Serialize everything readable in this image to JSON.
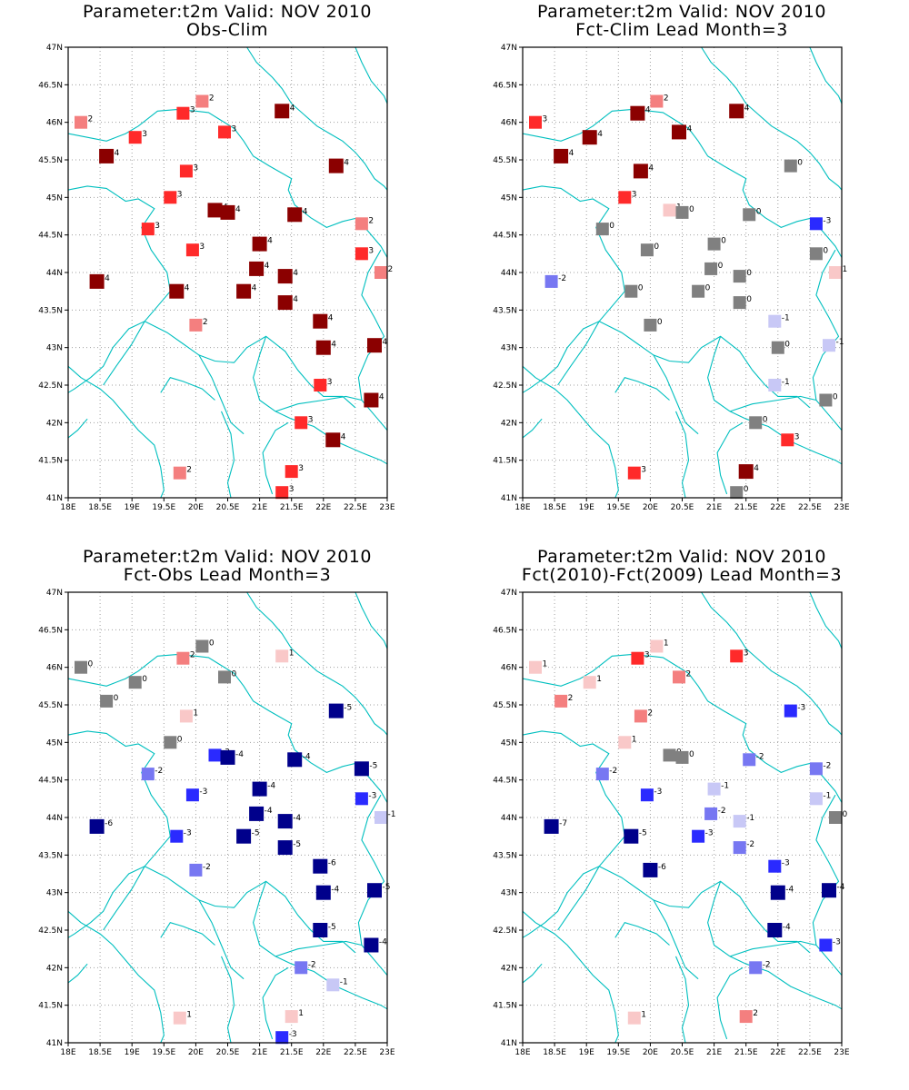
{
  "colors": {
    "red3": "#8b0000",
    "red2": "#ff2a2a",
    "red1": "#f47f7f",
    "red0": "#f9c8c8",
    "zero": "#808080",
    "blue1": "#c8c8f6",
    "blue2": "#7777f2",
    "blue3": "#2a2aff",
    "blue4": "#00008b",
    "coast": "#00bfbf",
    "grid": "#a0a0a0"
  },
  "axes": {
    "x_ticks": [
      "18E",
      "18.5E",
      "19E",
      "19.5E",
      "20E",
      "20.5E",
      "21E",
      "21.5E",
      "22E",
      "22.5E",
      "23E"
    ],
    "y_ticks": [
      "47N",
      "46.5N",
      "46N",
      "45.5N",
      "45N",
      "44.5N",
      "44N",
      "43.5N",
      "43N",
      "42.5N",
      "42N",
      "41.5N",
      "41N"
    ],
    "x_range": [
      18,
      23
    ],
    "y_range": [
      41,
      47
    ]
  },
  "panels": [
    {
      "title_line1": "Parameter:t2m Valid: NOV 2010",
      "title_line2": "Obs-Clim",
      "points": [
        {
          "lon": 18.2,
          "lat": 46.0,
          "v": 2
        },
        {
          "lon": 18.6,
          "lat": 45.55,
          "v": 4
        },
        {
          "lon": 19.05,
          "lat": 45.8,
          "v": 3
        },
        {
          "lon": 19.8,
          "lat": 46.12,
          "v": 3
        },
        {
          "lon": 20.1,
          "lat": 46.28,
          "v": 2
        },
        {
          "lon": 20.45,
          "lat": 45.87,
          "v": 3
        },
        {
          "lon": 21.35,
          "lat": 46.15,
          "v": 4
        },
        {
          "lon": 22.2,
          "lat": 45.42,
          "v": 4
        },
        {
          "lon": 19.85,
          "lat": 45.35,
          "v": 3
        },
        {
          "lon": 19.6,
          "lat": 45.0,
          "v": 3
        },
        {
          "lon": 20.3,
          "lat": 44.83,
          "v": 4
        },
        {
          "lon": 20.5,
          "lat": 44.8,
          "v": 4
        },
        {
          "lon": 21.55,
          "lat": 44.77,
          "v": 4
        },
        {
          "lon": 19.25,
          "lat": 44.58,
          "v": 3
        },
        {
          "lon": 19.95,
          "lat": 44.3,
          "v": 3
        },
        {
          "lon": 21.0,
          "lat": 44.38,
          "v": 4
        },
        {
          "lon": 22.6,
          "lat": 44.65,
          "v": 2
        },
        {
          "lon": 22.6,
          "lat": 44.25,
          "v": 3
        },
        {
          "lon": 22.9,
          "lat": 44.0,
          "v": 2
        },
        {
          "lon": 20.95,
          "lat": 44.05,
          "v": 4
        },
        {
          "lon": 21.4,
          "lat": 43.95,
          "v": 4
        },
        {
          "lon": 18.45,
          "lat": 43.88,
          "v": 4
        },
        {
          "lon": 19.7,
          "lat": 43.75,
          "v": 4
        },
        {
          "lon": 20.75,
          "lat": 43.75,
          "v": 4
        },
        {
          "lon": 21.4,
          "lat": 43.6,
          "v": 4
        },
        {
          "lon": 21.95,
          "lat": 43.35,
          "v": 4
        },
        {
          "lon": 20.0,
          "lat": 43.3,
          "v": 2
        },
        {
          "lon": 22.0,
          "lat": 43.0,
          "v": 4
        },
        {
          "lon": 22.8,
          "lat": 43.03,
          "v": 4
        },
        {
          "lon": 21.95,
          "lat": 42.5,
          "v": 3
        },
        {
          "lon": 22.75,
          "lat": 42.3,
          "v": 4
        },
        {
          "lon": 21.65,
          "lat": 42.0,
          "v": 3
        },
        {
          "lon": 22.15,
          "lat": 41.77,
          "v": 4
        },
        {
          "lon": 21.5,
          "lat": 41.35,
          "v": 3
        },
        {
          "lon": 19.75,
          "lat": 41.33,
          "v": 2
        },
        {
          "lon": 21.35,
          "lat": 41.07,
          "v": 3
        }
      ]
    },
    {
      "title_line1": "Parameter:t2m Valid: NOV 2010",
      "title_line2": "Fct-Clim Lead Month=3",
      "points": [
        {
          "lon": 18.2,
          "lat": 46.0,
          "v": 3
        },
        {
          "lon": 18.6,
          "lat": 45.55,
          "v": 4
        },
        {
          "lon": 19.05,
          "lat": 45.8,
          "v": 4
        },
        {
          "lon": 19.8,
          "lat": 46.12,
          "v": 4
        },
        {
          "lon": 20.1,
          "lat": 46.28,
          "v": 2
        },
        {
          "lon": 20.45,
          "lat": 45.87,
          "v": 4
        },
        {
          "lon": 21.35,
          "lat": 46.15,
          "v": 4
        },
        {
          "lon": 22.2,
          "lat": 45.42,
          "v": 0
        },
        {
          "lon": 19.85,
          "lat": 45.35,
          "v": 4
        },
        {
          "lon": 19.6,
          "lat": 45.0,
          "v": 3
        },
        {
          "lon": 20.3,
          "lat": 44.83,
          "v": 1
        },
        {
          "lon": 20.5,
          "lat": 44.8,
          "v": 0
        },
        {
          "lon": 21.55,
          "lat": 44.77,
          "v": 0
        },
        {
          "lon": 19.25,
          "lat": 44.58,
          "v": 0
        },
        {
          "lon": 19.95,
          "lat": 44.3,
          "v": 0
        },
        {
          "lon": 21.0,
          "lat": 44.38,
          "v": 0
        },
        {
          "lon": 22.6,
          "lat": 44.65,
          "v": -3
        },
        {
          "lon": 22.6,
          "lat": 44.25,
          "v": 0
        },
        {
          "lon": 22.9,
          "lat": 44.0,
          "v": 1
        },
        {
          "lon": 20.95,
          "lat": 44.05,
          "v": 0
        },
        {
          "lon": 21.4,
          "lat": 43.95,
          "v": 0
        },
        {
          "lon": 18.45,
          "lat": 43.88,
          "v": -2
        },
        {
          "lon": 19.7,
          "lat": 43.75,
          "v": 0
        },
        {
          "lon": 20.75,
          "lat": 43.75,
          "v": 0
        },
        {
          "lon": 21.4,
          "lat": 43.6,
          "v": 0
        },
        {
          "lon": 21.95,
          "lat": 43.35,
          "v": -1
        },
        {
          "lon": 20.0,
          "lat": 43.3,
          "v": 0
        },
        {
          "lon": 22.0,
          "lat": 43.0,
          "v": 0
        },
        {
          "lon": 22.8,
          "lat": 43.03,
          "v": -1
        },
        {
          "lon": 21.95,
          "lat": 42.5,
          "v": -1
        },
        {
          "lon": 22.75,
          "lat": 42.3,
          "v": 0
        },
        {
          "lon": 21.65,
          "lat": 42.0,
          "v": 0
        },
        {
          "lon": 22.15,
          "lat": 41.77,
          "v": 3
        },
        {
          "lon": 21.5,
          "lat": 41.35,
          "v": 4
        },
        {
          "lon": 19.75,
          "lat": 41.33,
          "v": 3
        },
        {
          "lon": 21.35,
          "lat": 41.07,
          "v": 0
        }
      ]
    },
    {
      "title_line1": "Parameter:t2m Valid: NOV 2010",
      "title_line2": "Fct-Obs Lead Month=3",
      "points": [
        {
          "lon": 18.2,
          "lat": 46.0,
          "v": 0
        },
        {
          "lon": 18.6,
          "lat": 45.55,
          "v": 0
        },
        {
          "lon": 19.05,
          "lat": 45.8,
          "v": 0
        },
        {
          "lon": 19.8,
          "lat": 46.12,
          "v": 2
        },
        {
          "lon": 20.1,
          "lat": 46.28,
          "v": 0
        },
        {
          "lon": 20.45,
          "lat": 45.87,
          "v": 0
        },
        {
          "lon": 21.35,
          "lat": 46.15,
          "v": 1
        },
        {
          "lon": 22.2,
          "lat": 45.42,
          "v": -5
        },
        {
          "lon": 19.85,
          "lat": 45.35,
          "v": 1
        },
        {
          "lon": 19.6,
          "lat": 45.0,
          "v": 0
        },
        {
          "lon": 20.3,
          "lat": 44.83,
          "v": -3
        },
        {
          "lon": 20.5,
          "lat": 44.8,
          "v": -4
        },
        {
          "lon": 21.55,
          "lat": 44.77,
          "v": -4
        },
        {
          "lon": 19.25,
          "lat": 44.58,
          "v": -2
        },
        {
          "lon": 19.95,
          "lat": 44.3,
          "v": -3
        },
        {
          "lon": 21.0,
          "lat": 44.38,
          "v": -4
        },
        {
          "lon": 22.6,
          "lat": 44.65,
          "v": -5
        },
        {
          "lon": 22.6,
          "lat": 44.25,
          "v": -3
        },
        {
          "lon": 22.9,
          "lat": 44.0,
          "v": -1
        },
        {
          "lon": 20.95,
          "lat": 44.05,
          "v": -4
        },
        {
          "lon": 21.4,
          "lat": 43.95,
          "v": -4
        },
        {
          "lon": 18.45,
          "lat": 43.88,
          "v": -6
        },
        {
          "lon": 19.7,
          "lat": 43.75,
          "v": -3
        },
        {
          "lon": 20.75,
          "lat": 43.75,
          "v": -5
        },
        {
          "lon": 21.4,
          "lat": 43.6,
          "v": -5
        },
        {
          "lon": 21.95,
          "lat": 43.35,
          "v": -6
        },
        {
          "lon": 20.0,
          "lat": 43.3,
          "v": -2
        },
        {
          "lon": 22.0,
          "lat": 43.0,
          "v": -4
        },
        {
          "lon": 22.8,
          "lat": 43.03,
          "v": -5
        },
        {
          "lon": 21.95,
          "lat": 42.5,
          "v": -5
        },
        {
          "lon": 22.75,
          "lat": 42.3,
          "v": -4
        },
        {
          "lon": 21.65,
          "lat": 42.0,
          "v": -2
        },
        {
          "lon": 22.15,
          "lat": 41.77,
          "v": -1
        },
        {
          "lon": 21.5,
          "lat": 41.35,
          "v": 1
        },
        {
          "lon": 19.75,
          "lat": 41.33,
          "v": 1
        },
        {
          "lon": 21.35,
          "lat": 41.07,
          "v": -3
        }
      ]
    },
    {
      "title_line1": "Parameter:t2m Valid: NOV 2010",
      "title_line2": "Fct(2010)-Fct(2009) Lead Month=3",
      "points": [
        {
          "lon": 18.2,
          "lat": 46.0,
          "v": 1
        },
        {
          "lon": 18.6,
          "lat": 45.55,
          "v": 2
        },
        {
          "lon": 19.05,
          "lat": 45.8,
          "v": 1
        },
        {
          "lon": 19.8,
          "lat": 46.12,
          "v": 3
        },
        {
          "lon": 20.1,
          "lat": 46.28,
          "v": 1
        },
        {
          "lon": 20.45,
          "lat": 45.87,
          "v": 2
        },
        {
          "lon": 21.35,
          "lat": 46.15,
          "v": 3
        },
        {
          "lon": 22.2,
          "lat": 45.42,
          "v": -3
        },
        {
          "lon": 19.85,
          "lat": 45.35,
          "v": 2
        },
        {
          "lon": 19.6,
          "lat": 45.0,
          "v": 1
        },
        {
          "lon": 20.3,
          "lat": 44.83,
          "v": 0
        },
        {
          "lon": 20.5,
          "lat": 44.8,
          "v": 0
        },
        {
          "lon": 21.55,
          "lat": 44.77,
          "v": -2
        },
        {
          "lon": 19.25,
          "lat": 44.58,
          "v": -2
        },
        {
          "lon": 19.95,
          "lat": 44.3,
          "v": -3
        },
        {
          "lon": 21.0,
          "lat": 44.38,
          "v": -1
        },
        {
          "lon": 22.6,
          "lat": 44.65,
          "v": -2
        },
        {
          "lon": 22.6,
          "lat": 44.25,
          "v": -1
        },
        {
          "lon": 22.9,
          "lat": 44.0,
          "v": 0
        },
        {
          "lon": 20.95,
          "lat": 44.05,
          "v": -2
        },
        {
          "lon": 21.4,
          "lat": 43.95,
          "v": -1
        },
        {
          "lon": 18.45,
          "lat": 43.88,
          "v": -7
        },
        {
          "lon": 19.7,
          "lat": 43.75,
          "v": -5
        },
        {
          "lon": 20.75,
          "lat": 43.75,
          "v": -3
        },
        {
          "lon": 21.4,
          "lat": 43.6,
          "v": -2
        },
        {
          "lon": 21.95,
          "lat": 43.35,
          "v": -3
        },
        {
          "lon": 20.0,
          "lat": 43.3,
          "v": -6
        },
        {
          "lon": 22.0,
          "lat": 43.0,
          "v": -4
        },
        {
          "lon": 22.8,
          "lat": 43.03,
          "v": -4
        },
        {
          "lon": 21.95,
          "lat": 42.5,
          "v": -4
        },
        {
          "lon": 22.75,
          "lat": 42.3,
          "v": -3
        },
        {
          "lon": 21.65,
          "lat": 42.0,
          "v": -2
        },
        {
          "lon": 21.5,
          "lat": 41.35,
          "v": 2
        },
        {
          "lon": 19.75,
          "lat": 41.33,
          "v": 1
        }
      ]
    }
  ]
}
